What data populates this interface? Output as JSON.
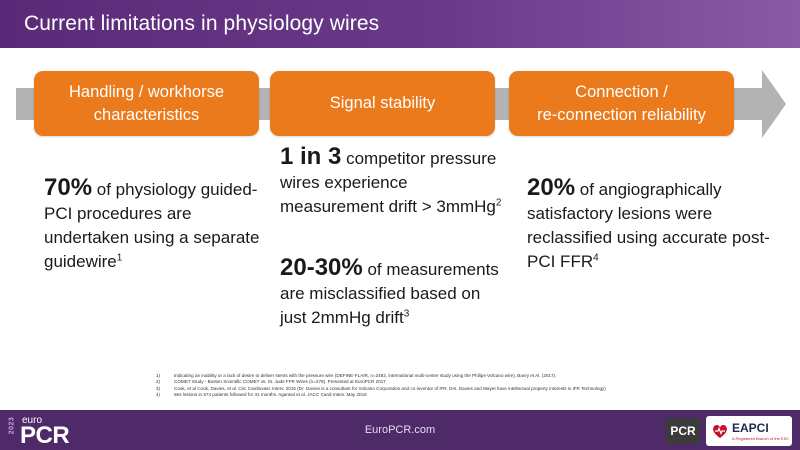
{
  "header": {
    "title": "Current limitations in physiology wires"
  },
  "colors": {
    "header": "#5a2a78",
    "box": "#ea7a1c",
    "arrow": "#b3b3b3",
    "footer": "#4e2a68"
  },
  "boxes": [
    {
      "line1": "Handling / workhorse",
      "line2": "characteristics"
    },
    {
      "line1": "Signal stability"
    },
    {
      "line1": "Connection /",
      "line2": "re-connection reliability"
    }
  ],
  "stats": {
    "col1": {
      "big": "70%",
      "text": " of physiology guided-PCI procedures are undertaken using a separate guidewire",
      "sup": "1"
    },
    "col2a": {
      "big": "1 in 3",
      "text": " competitor pressure wires experience measurement drift > 3mmHg",
      "sup": "2"
    },
    "col2b": {
      "big": "20-30%",
      "text": " of measurements are misclassified based on just 2mmHg drift",
      "sup": "3"
    },
    "col3": {
      "big": "20%",
      "text": " of angiographically satisfactory lesions were reclassified using accurate post-PCI FFR",
      "sup": "4"
    }
  },
  "references": [
    {
      "num": "1)",
      "text": "Indicating an inability or a lack of desire to deliver stents with the pressure wire (DEFINE-FLAIR,  n=2492, international multi-center study using the Philips-Volcano wire), Bavry et Al. (2017)."
    },
    {
      "num": "2)",
      "text": "COMET  Study - Boston Scientific COMET  vs. St. Jude FFR  Wires (n=279). Presented at EuroPCR  2017"
    },
    {
      "num": "3)",
      "text": "Cook, et al Cook, Davies, et al.  Circ Cardiovasc Interv. 2016 (Dr. Davies is a consultant for Volcano Corporation and co-inventor of iFR.  Drs. Davies and Mayet have intellectual property interests in iFR Technology)"
    },
    {
      "num": "4)",
      "text": "664 lesions in 574 patients followed for 31 months. Agarwal et al. JACC  Cardi Interv. May 2016"
    }
  ],
  "footer": {
    "year": "2023",
    "logo_small": "euro",
    "logo_big": "PCR",
    "url": "EuroPCR.com",
    "pcr_badge": "PCR",
    "eapci": "EAPCI",
    "eapci_sub": "A Registered Branch of the ESC"
  }
}
